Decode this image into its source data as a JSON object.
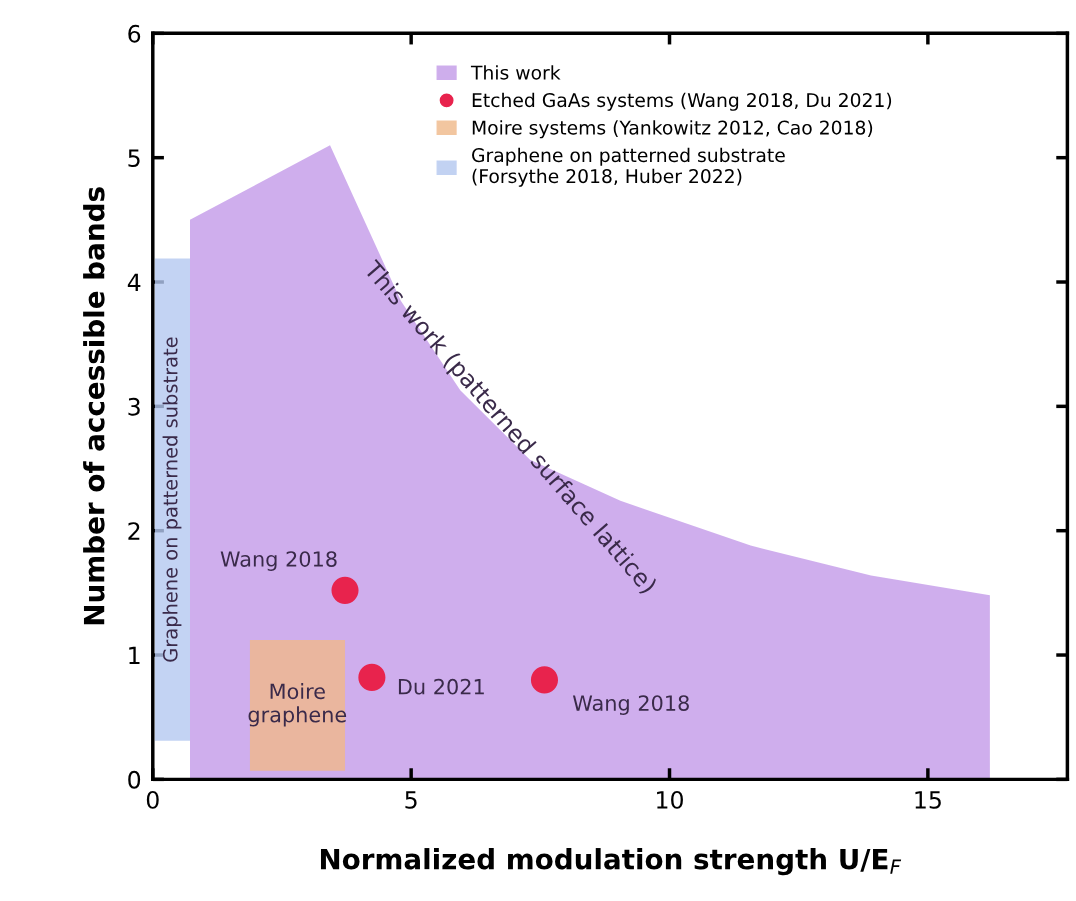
{
  "chart_data": {
    "type": "area",
    "xlabel": "Normalized modulation strength U/E$_{F}$",
    "ylabel": "Number of accessible bands",
    "xlim": [
      0,
      17.7
    ],
    "ylim": [
      0,
      6
    ],
    "xticks": [
      0,
      5,
      10,
      15
    ],
    "yticks": [
      0,
      1,
      2,
      3,
      4,
      5,
      6
    ],
    "grid": false,
    "legend": "top",
    "series": [
      {
        "name": "This work",
        "color": "#c39ae8",
        "x": [
          0.72,
          0.72,
          3.43,
          4.8,
          5.95,
          7.3,
          9.05,
          11.57,
          13.9,
          16.2
        ],
        "values": [
          0,
          4.5,
          5.1,
          3.85,
          3.13,
          2.57,
          2.24,
          1.88,
          1.64,
          1.48
        ]
      },
      {
        "name": "Etched GaAs systems (Wang 2018, Du 2021)",
        "type": "scatter",
        "color": "#e8234d",
        "marker": "circle",
        "x": [
          3.72,
          4.24,
          7.58
        ],
        "values": [
          1.52,
          0.82,
          0.8
        ]
      },
      {
        "name": "Moire systems (Yankowitz 2012, Cao 2018)",
        "type": "line",
        "color": "#f0b889",
        "x": [
          1.88,
          3.72
        ],
        "values": [
          null,
          null
        ],
        "lower": [
          0.07,
          0.07
        ],
        "upper": [
          1.12,
          1.12
        ]
      },
      {
        "name": "Graphene on patterned substrate\n(Forsythe 2018, Huber 2022)",
        "type": "line",
        "color": "#b4c8f0",
        "x": [
          0.04,
          0.72
        ],
        "values": [
          null,
          null
        ],
        "lower": [
          0.31,
          0.31
        ],
        "upper": [
          4.19,
          4.19
        ]
      }
    ],
    "annotations": [
      {
        "text": "Wang 2018",
        "x": 3.72,
        "y": 1.52
      },
      {
        "text": "Du 2021",
        "x": 4.24,
        "y": 0.82
      },
      {
        "text": "Wang 2018",
        "x": 7.58,
        "y": 0.8
      },
      "Moire graphene",
      "Graphene on patterned substrate",
      "This work (patterned surface lattice)"
    ]
  }
}
